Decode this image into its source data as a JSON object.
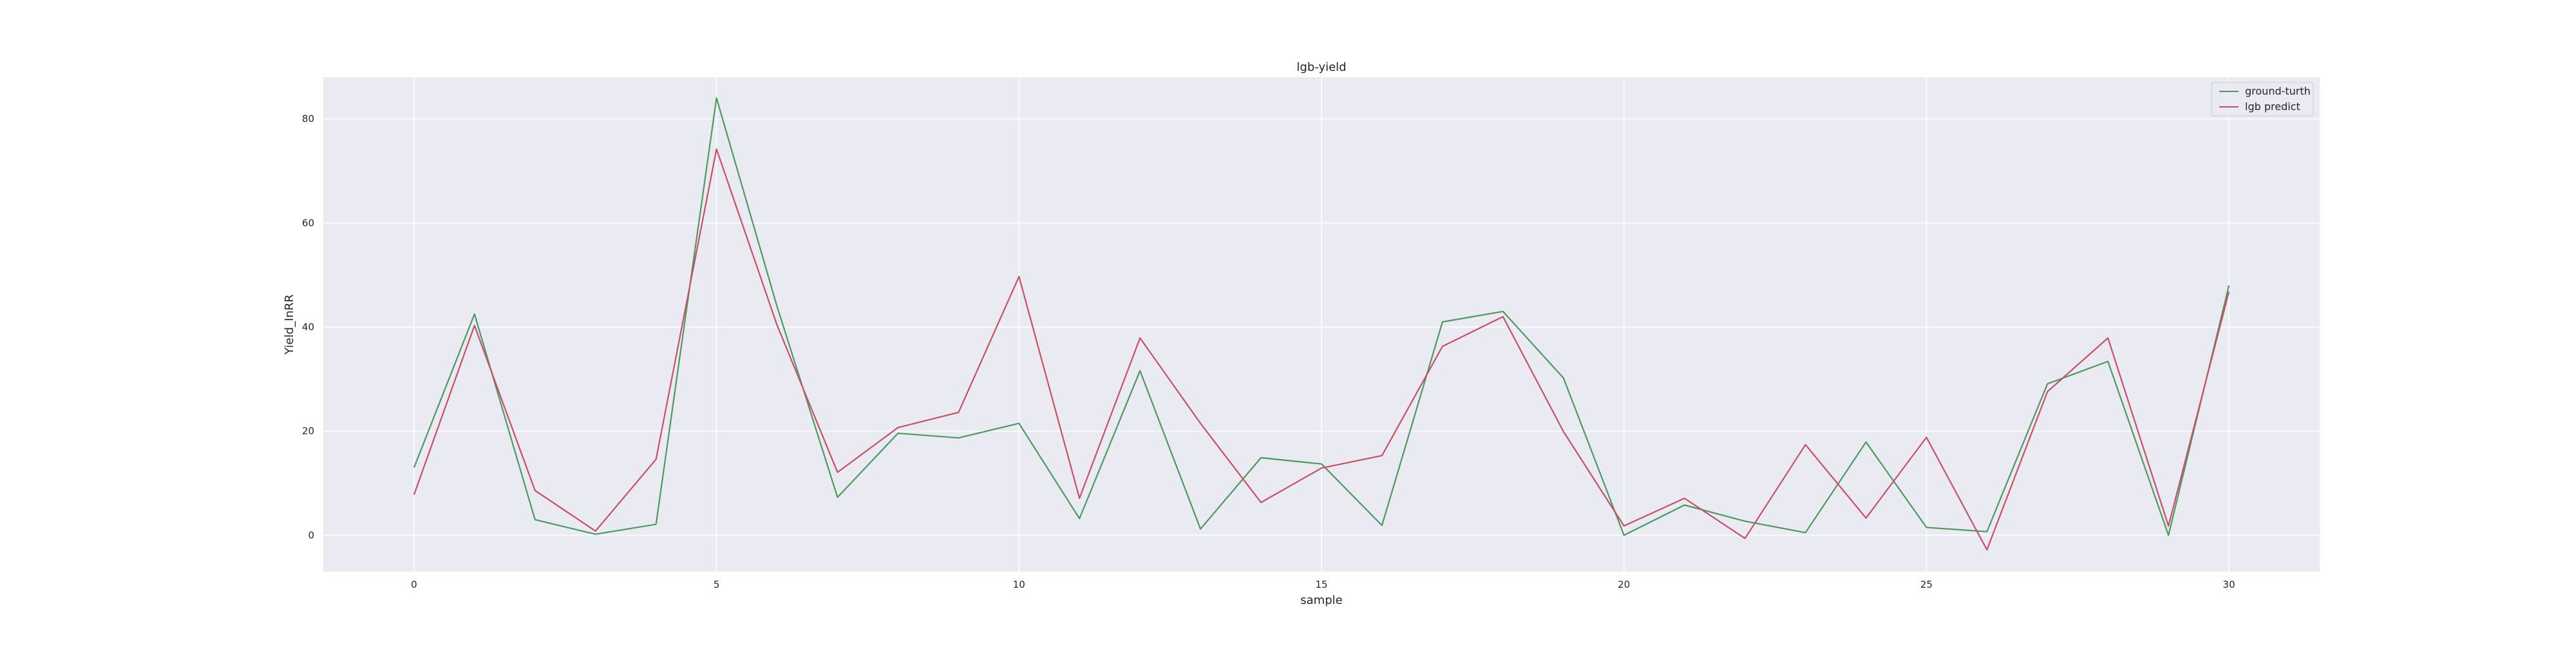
{
  "chart_data": {
    "type": "line",
    "title": "lgb-yield",
    "xlabel": "sample",
    "ylabel": "Yield_InRR",
    "xlim": [
      -1.5,
      31.5
    ],
    "ylim": [
      -7,
      88
    ],
    "xticks": [
      0,
      5,
      10,
      15,
      20,
      25,
      30
    ],
    "yticks": [
      0,
      20,
      40,
      60,
      80
    ],
    "grid": true,
    "legend_position": "top-right",
    "x": [
      0,
      1,
      2,
      3,
      4,
      5,
      6,
      7,
      8,
      9,
      10,
      11,
      12,
      13,
      14,
      15,
      16,
      17,
      18,
      19,
      20,
      21,
      22,
      23,
      24,
      25,
      26,
      27,
      28,
      29,
      30
    ],
    "series": [
      {
        "name": "ground-turth",
        "color": "#4c9a5e",
        "values": [
          13,
          42.5,
          3,
          0.2,
          2.1,
          84,
          44,
          7.3,
          19.6,
          18.7,
          21.5,
          3.2,
          31.6,
          1.2,
          14.9,
          13.7,
          1.9,
          41,
          43,
          30.2,
          0,
          5.8,
          2.7,
          0.5,
          17.9,
          1.5,
          0.7,
          29.1,
          33.4,
          0,
          48
        ]
      },
      {
        "name": "lgb predict",
        "color": "#c94f66",
        "values": [
          7.8,
          40.3,
          8.6,
          0.8,
          14.6,
          74.2,
          40.4,
          12.1,
          20.7,
          23.6,
          49.7,
          7.1,
          37.9,
          21.5,
          6.3,
          12.9,
          15.3,
          36.3,
          42,
          19.9,
          1.8,
          7.1,
          -0.6,
          17.4,
          3.3,
          18.8,
          -2.8,
          27.6,
          37.9,
          1.8,
          46.8
        ]
      }
    ]
  }
}
